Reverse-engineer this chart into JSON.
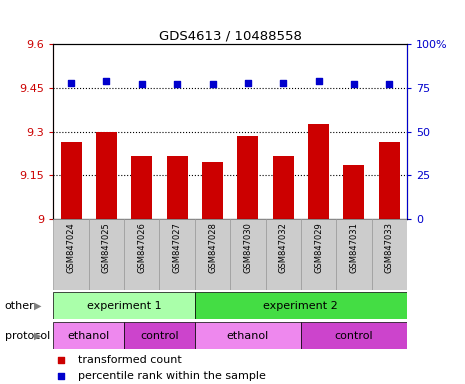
{
  "title": "GDS4613 / 10488558",
  "samples": [
    "GSM847024",
    "GSM847025",
    "GSM847026",
    "GSM847027",
    "GSM847028",
    "GSM847030",
    "GSM847032",
    "GSM847029",
    "GSM847031",
    "GSM847033"
  ],
  "bar_values": [
    9.265,
    9.3,
    9.215,
    9.215,
    9.195,
    9.285,
    9.215,
    9.325,
    9.185,
    9.265
  ],
  "dot_values": [
    78,
    79,
    77,
    77,
    77,
    78,
    78,
    79,
    77,
    77
  ],
  "ylim_left": [
    9.0,
    9.6
  ],
  "ylim_right": [
    0,
    100
  ],
  "yticks_left": [
    9.0,
    9.15,
    9.3,
    9.45,
    9.6
  ],
  "ytick_labels_left": [
    "9",
    "9.15",
    "9.3",
    "9.45",
    "9.6"
  ],
  "yticks_right": [
    0,
    25,
    50,
    75,
    100
  ],
  "ytick_labels_right": [
    "0",
    "25",
    "50",
    "75",
    "100%"
  ],
  "hlines": [
    9.15,
    9.3,
    9.45
  ],
  "bar_color": "#cc0000",
  "dot_color": "#0000cc",
  "bar_width": 0.6,
  "experiment_groups": [
    {
      "label": "experiment 1",
      "start": 0,
      "end": 4,
      "color": "#aaffaa"
    },
    {
      "label": "experiment 2",
      "start": 4,
      "end": 10,
      "color": "#44dd44"
    }
  ],
  "protocol_groups": [
    {
      "label": "ethanol",
      "start": 0,
      "end": 2,
      "color": "#ee88ee"
    },
    {
      "label": "control",
      "start": 2,
      "end": 4,
      "color": "#cc44cc"
    },
    {
      "label": "ethanol",
      "start": 4,
      "end": 7,
      "color": "#ee88ee"
    },
    {
      "label": "control",
      "start": 7,
      "end": 10,
      "color": "#cc44cc"
    }
  ],
  "legend_items": [
    {
      "label": "transformed count",
      "color": "#cc0000"
    },
    {
      "label": "percentile rank within the sample",
      "color": "#0000cc"
    }
  ],
  "left_tick_color": "#cc0000",
  "right_tick_color": "#0000cc",
  "bar_bottom": 9.0,
  "sample_box_color": "#cccccc",
  "sample_box_edge": "#999999"
}
